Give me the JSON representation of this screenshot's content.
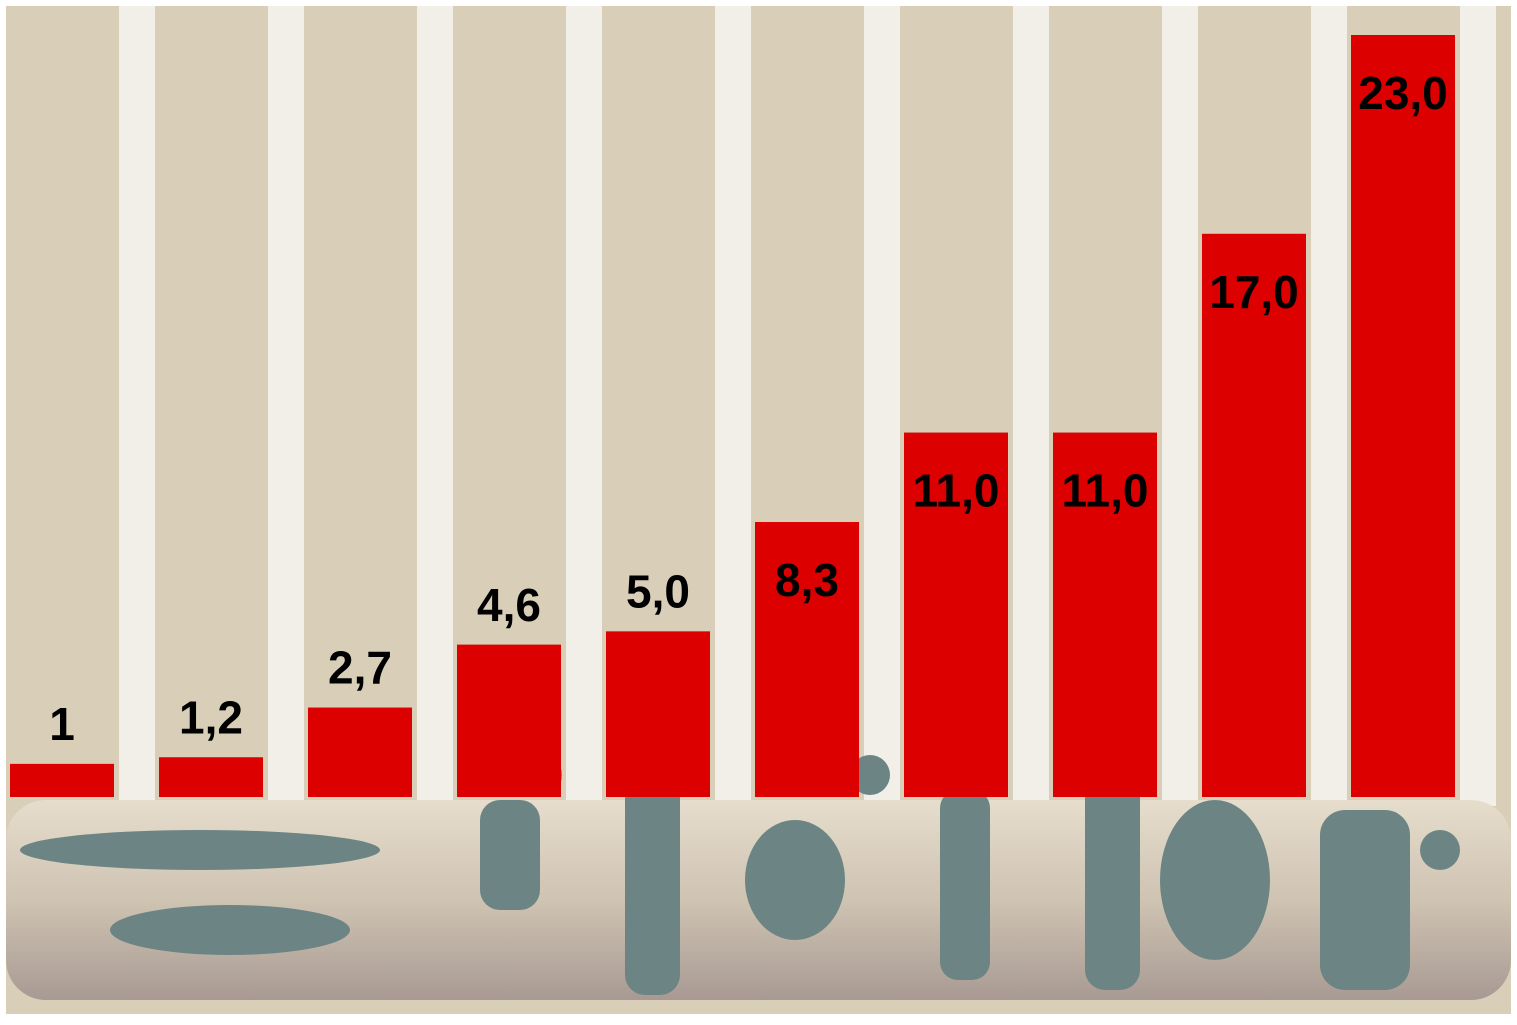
{
  "chart_data": {
    "type": "bar",
    "categories": [
      null,
      null,
      null,
      null,
      null,
      null,
      null,
      null,
      null,
      null
    ],
    "values": [
      1,
      1.2,
      2.7,
      4.6,
      5.0,
      8.3,
      11.0,
      11.0,
      17.0,
      23.0
    ],
    "value_labels": [
      "1",
      "1,2",
      "2,7",
      "4,6",
      "5,0",
      "8,3",
      "11,0",
      "11,0",
      "17,0",
      "23,0"
    ],
    "color": "#dc0000"
  }
}
